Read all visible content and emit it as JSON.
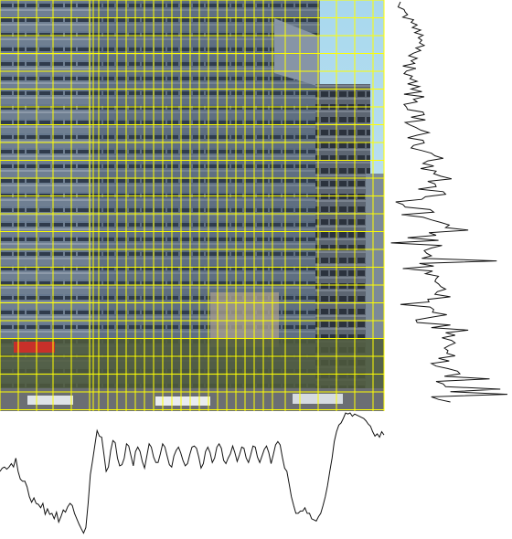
{
  "figure": {
    "grid_color": "#ffff00",
    "profile_color": "#111111",
    "vertical_profile_samples": [
      10,
      9,
      8,
      13,
      14,
      16,
      12,
      21,
      19,
      24,
      20,
      27,
      22,
      29,
      25,
      28,
      26,
      30,
      23,
      27,
      21,
      17,
      24,
      19,
      22,
      12,
      23,
      15,
      13,
      20,
      18,
      24,
      16,
      26,
      19,
      28,
      13,
      30,
      21,
      24,
      13,
      15,
      16,
      29,
      30,
      19,
      31,
      14,
      18,
      23,
      27,
      34,
      24,
      16,
      29,
      30,
      21,
      19,
      28,
      36,
      39,
      46,
      33,
      29,
      38,
      27,
      40,
      38,
      44,
      53,
      33,
      39,
      40,
      25,
      46,
      48,
      31,
      28,
      6,
      12,
      14,
      35,
      38,
      11,
      29,
      36,
      44,
      51,
      48,
      67,
      34,
      40,
      16,
      42,
      2,
      45,
      36,
      30,
      32,
      36,
      28,
      91,
      26,
      38,
      12,
      37,
      31,
      42,
      40,
      39,
      42,
      44,
      48,
      41,
      39,
      52,
      33,
      34,
      10,
      35,
      38,
      37,
      49,
      36,
      23,
      24,
      52,
      36,
      67,
      48,
      56,
      45,
      53,
      56,
      51,
      47,
      50,
      49,
      56,
      42,
      51,
      36,
      40,
      50,
      58,
      60,
      47,
      85,
      40,
      46,
      48,
      94,
      52,
      100,
      36,
      42,
      52
    ],
    "horizontal_profile_samples": [
      58,
      61,
      62,
      60,
      62,
      65,
      62,
      70,
      58,
      51,
      49,
      49,
      44,
      35,
      30,
      34,
      29,
      28,
      25,
      29,
      19,
      24,
      19,
      20,
      15,
      21,
      12,
      17,
      23,
      21,
      26,
      29,
      27,
      20,
      15,
      10,
      6,
      2,
      7,
      29,
      55,
      68,
      82,
      95,
      90,
      89,
      74,
      58,
      62,
      77,
      86,
      84,
      70,
      63,
      64,
      70,
      83,
      81,
      72,
      63,
      76,
      80,
      76,
      67,
      61,
      72,
      83,
      80,
      71,
      66,
      66,
      74,
      83,
      80,
      72,
      64,
      62,
      72,
      77,
      80,
      75,
      68,
      63,
      65,
      73,
      80,
      81,
      79,
      71,
      61,
      65,
      76,
      80,
      75,
      66,
      70,
      80,
      83,
      79,
      68,
      65,
      70,
      74,
      81,
      75,
      67,
      73,
      80,
      79,
      70,
      66,
      73,
      81,
      80,
      71,
      66,
      72,
      78,
      81,
      75,
      65,
      73,
      82,
      85,
      82,
      71,
      61,
      58,
      47,
      35,
      27,
      20,
      20,
      22,
      22,
      25,
      20,
      20,
      15,
      14,
      13,
      17,
      20,
      27,
      35,
      45,
      58,
      70,
      85,
      94,
      100,
      102,
      106,
      111,
      110,
      111,
      108,
      110,
      109,
      108,
      107,
      106,
      104,
      101,
      99,
      94,
      90,
      92,
      89,
      94,
      91
    ]
  }
}
